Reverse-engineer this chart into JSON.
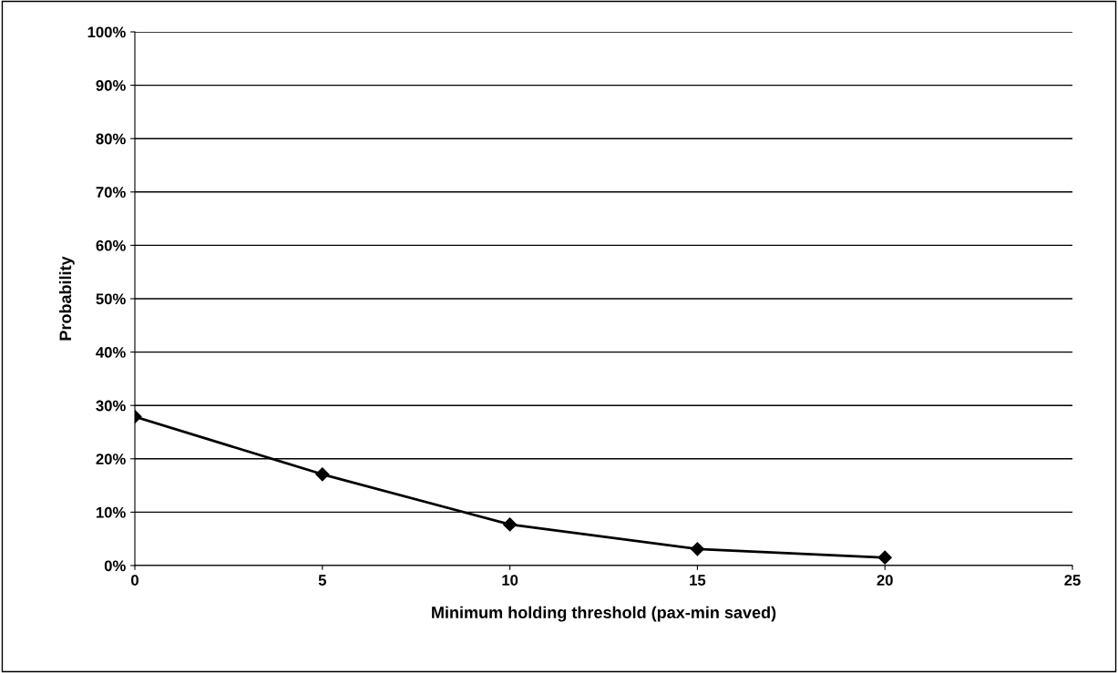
{
  "chart_data": {
    "type": "line",
    "xlabel": "Minimum holding threshold (pax-min saved)",
    "ylabel": "Probability",
    "x": [
      0,
      5,
      10,
      15,
      20
    ],
    "series": [
      {
        "color": "#000000",
        "values": [
          27.9,
          17.1,
          7.7,
          3.1,
          1.5
        ]
      }
    ],
    "xlim": [
      0,
      25
    ],
    "xticks": [
      0,
      5,
      10,
      15,
      20,
      25
    ],
    "ylim": [
      0,
      100
    ],
    "yticks": [
      {
        "value": 0,
        "label": "0%"
      },
      {
        "value": 10,
        "label": "10%"
      },
      {
        "value": 20,
        "label": "20%"
      },
      {
        "value": 30,
        "label": "30%"
      },
      {
        "value": 40,
        "label": "40%"
      },
      {
        "value": 50,
        "label": "50%"
      },
      {
        "value": 60,
        "label": "60%"
      },
      {
        "value": 70,
        "label": "70%"
      },
      {
        "value": 80,
        "label": "80%"
      },
      {
        "value": 90,
        "label": "90%"
      },
      {
        "value": 100,
        "label": "100%"
      }
    ],
    "grid": "y",
    "marker": "diamond",
    "line_style": "solid"
  }
}
